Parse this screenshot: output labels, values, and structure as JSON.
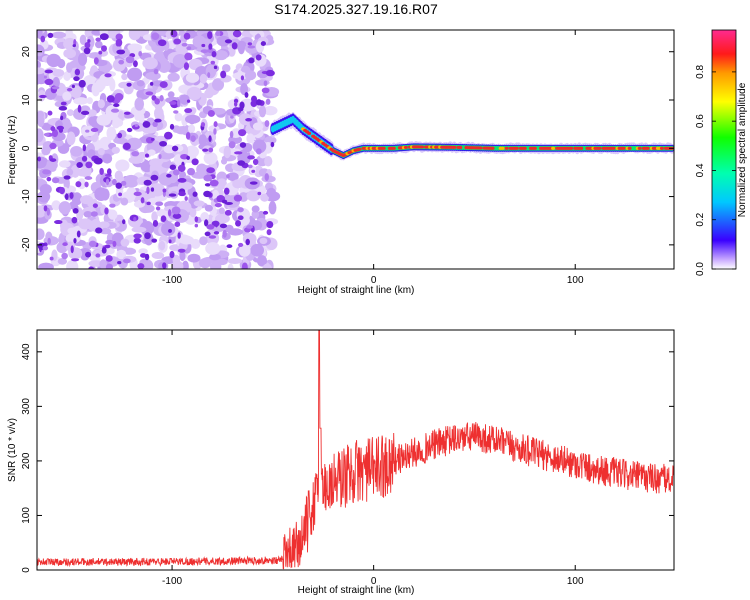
{
  "title": "S174.2025.327.19.16.R07",
  "chart_data": [
    {
      "type": "heatmap",
      "name": "spectrogram",
      "xlabel": "Height of straight line (km)",
      "ylabel": "Frequency (Hz)",
      "xlim": [
        -167,
        149
      ],
      "ylim": [
        -25,
        24.5
      ],
      "xticks": [
        -100,
        0,
        100
      ],
      "yticks": [
        -20,
        -10,
        0,
        10,
        20
      ],
      "noise_region_x": [
        -167,
        -50
      ],
      "signal_track": {
        "x": [
          -50,
          -45,
          -40,
          -35,
          -30,
          -25,
          -20,
          -15,
          -10,
          -5,
          0,
          10,
          20,
          40,
          60,
          80,
          100,
          120,
          148
        ],
        "freq": [
          4,
          5,
          6,
          4,
          2.5,
          1,
          -0.5,
          -1.5,
          -0.5,
          0,
          0,
          0,
          0.3,
          0.2,
          0,
          0,
          0,
          0,
          0
        ]
      },
      "colorbar": {
        "label": "Normalized spectral amplitude",
        "range": [
          0,
          0.97
        ],
        "ticks": [
          "0.0",
          "0.2",
          "0.4",
          "0.6",
          "0.8"
        ],
        "tick_values": [
          0,
          0.2,
          0.4,
          0.6,
          0.8
        ]
      }
    },
    {
      "type": "line",
      "name": "snr",
      "xlabel": "Height of straight line (km)",
      "ylabel": "SNR (10 * v/v)",
      "xlim": [
        -167,
        149
      ],
      "ylim": [
        0,
        440
      ],
      "xticks": [
        -100,
        0,
        100
      ],
      "yticks": [
        0,
        100,
        200,
        300,
        400
      ],
      "series": [
        {
          "name": "SNR",
          "color": "#ee3030",
          "trend_x": [
            -167,
            -120,
            -80,
            -45,
            -40,
            -35,
            -30,
            -25,
            -20,
            -10,
            0,
            10,
            20,
            30,
            40,
            50,
            60,
            70,
            80,
            90,
            100,
            110,
            120,
            130,
            140,
            149
          ],
          "trend_y": [
            15,
            15,
            16,
            18,
            25,
            60,
            120,
            150,
            160,
            180,
            185,
            200,
            215,
            230,
            240,
            245,
            238,
            225,
            215,
            205,
            195,
            185,
            178,
            172,
            168,
            165
          ],
          "spike_x": -27,
          "spike_y": 440
        }
      ]
    }
  ],
  "colors": {
    "noise": "#7b2ce0",
    "signal_core": "#ee2a2a",
    "line": "#ee3030"
  }
}
